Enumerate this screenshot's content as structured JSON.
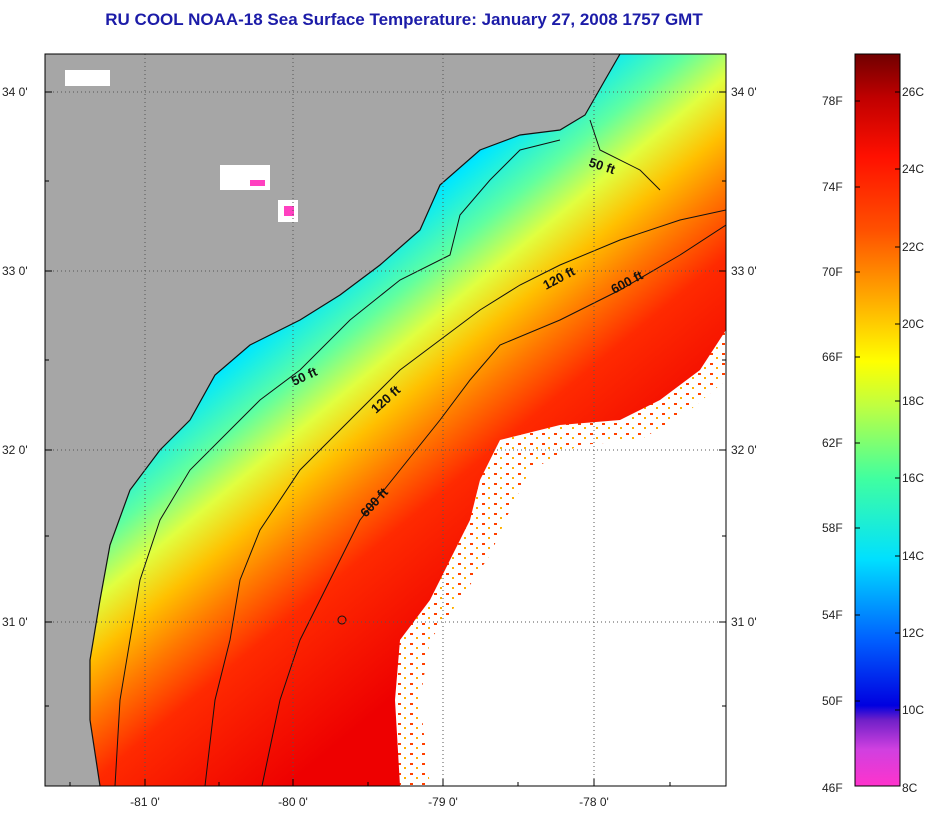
{
  "title": "RU COOL  NOAA-18  Sea Surface Temperature:  January 27, 2008 1757 GMT",
  "axes": {
    "lat_ticks": [
      "34 0'",
      "33 0'",
      "32 0'",
      "31 0'"
    ],
    "lon_ticks": [
      "-81 0'",
      "-80 0'",
      "-79 0'",
      "-78 0'"
    ]
  },
  "contours": {
    "labels": [
      "50 ft",
      "50 ft",
      "120 ft",
      "120 ft",
      "600 ft",
      "600 ft"
    ]
  },
  "colorbar": {
    "fahrenheit_ticks": [
      "78F",
      "74F",
      "70F",
      "66F",
      "62F",
      "58F",
      "54F",
      "50F",
      "46F"
    ],
    "celsius_ticks": [
      "26C",
      "24C",
      "22C",
      "20C",
      "18C",
      "16C",
      "14C",
      "12C",
      "10C",
      "8C"
    ],
    "colors": [
      "#ff33bb",
      "#b040e0",
      "#3010c0",
      "#0030ff",
      "#0090ff",
      "#00ffff",
      "#40ff80",
      "#c0ff40",
      "#ffff00",
      "#ffa000",
      "#ff6000",
      "#ff1000",
      "#c00000",
      "#700000"
    ]
  },
  "colors": {
    "land": "#a6a6a6",
    "cloud": "#ffffff",
    "title": "#1c1ca8"
  }
}
